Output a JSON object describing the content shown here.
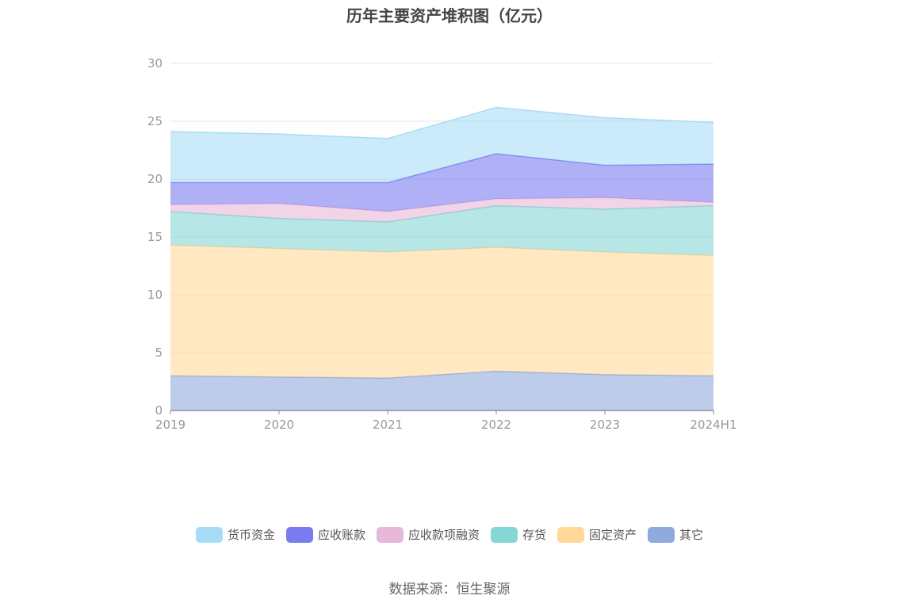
{
  "title": "历年主要资产堆积图（亿元）",
  "source": "数据来源：恒生聚源",
  "chart_data": {
    "type": "area",
    "stacked": true,
    "categories": [
      "2019",
      "2020",
      "2021",
      "2022",
      "2023",
      "2024H1"
    ],
    "ylim": [
      0,
      30
    ],
    "yticks": [
      0,
      5,
      10,
      15,
      20,
      25,
      30
    ],
    "grid": true,
    "legend_position": "bottom",
    "series": [
      {
        "name": "其它",
        "color": "#8faadc",
        "values": [
          3.0,
          2.9,
          2.8,
          3.4,
          3.1,
          3.0
        ]
      },
      {
        "name": "固定资产",
        "color": "#ffd89a",
        "values": [
          11.3,
          11.1,
          10.9,
          10.7,
          10.6,
          10.4
        ]
      },
      {
        "name": "存货",
        "color": "#86d6d6",
        "values": [
          2.9,
          2.6,
          2.6,
          3.6,
          3.7,
          4.3
        ]
      },
      {
        "name": "应收款项融资",
        "color": "#e8b8d8",
        "values": [
          0.6,
          1.3,
          0.9,
          0.6,
          1.0,
          0.3
        ]
      },
      {
        "name": "应收账款",
        "color": "#7b7bf0",
        "values": [
          1.9,
          1.8,
          2.5,
          3.9,
          2.8,
          3.3
        ]
      },
      {
        "name": "货币资金",
        "color": "#a8dcf6",
        "values": [
          4.4,
          4.2,
          3.8,
          4.0,
          4.1,
          3.6
        ]
      }
    ],
    "legend_order": [
      "货币资金",
      "应收账款",
      "应收款项融资",
      "存货",
      "固定资产",
      "其它"
    ]
  }
}
